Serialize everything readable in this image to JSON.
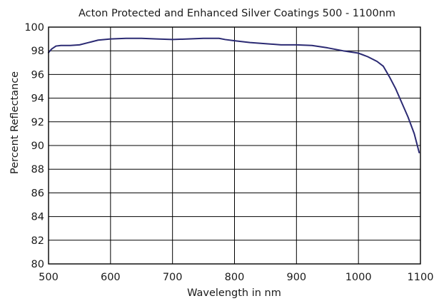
{
  "chart_data": {
    "type": "line",
    "title": "Acton Protected and Enhanced Silver Coatings 500 - 1100nm",
    "xlabel": "Wavelength in nm",
    "ylabel": "Percent Reflectance",
    "xlim": [
      500,
      1100
    ],
    "ylim": [
      80,
      100
    ],
    "xticks": [
      500,
      600,
      700,
      800,
      900,
      1000,
      1100
    ],
    "yticks": [
      80,
      82,
      84,
      86,
      88,
      90,
      92,
      94,
      96,
      98,
      100
    ],
    "grid": true,
    "line_color": "#2b2a73",
    "series": [
      {
        "x": [
          500,
          505,
          512,
          520,
          535,
          550,
          565,
          580,
          600,
          625,
          650,
          675,
          700,
          725,
          750,
          775,
          785,
          800,
          825,
          850,
          875,
          900,
          925,
          950,
          975,
          1000,
          1015,
          1030,
          1040,
          1050,
          1060,
          1070,
          1080,
          1090,
          1098
        ],
        "y": [
          97.85,
          98.15,
          98.4,
          98.45,
          98.45,
          98.5,
          98.7,
          98.9,
          99.0,
          99.05,
          99.05,
          99.0,
          98.95,
          99.0,
          99.05,
          99.05,
          98.95,
          98.85,
          98.7,
          98.6,
          98.5,
          98.5,
          98.45,
          98.25,
          98.0,
          97.8,
          97.5,
          97.1,
          96.7,
          95.8,
          94.8,
          93.6,
          92.4,
          91.0,
          89.4
        ]
      }
    ]
  }
}
